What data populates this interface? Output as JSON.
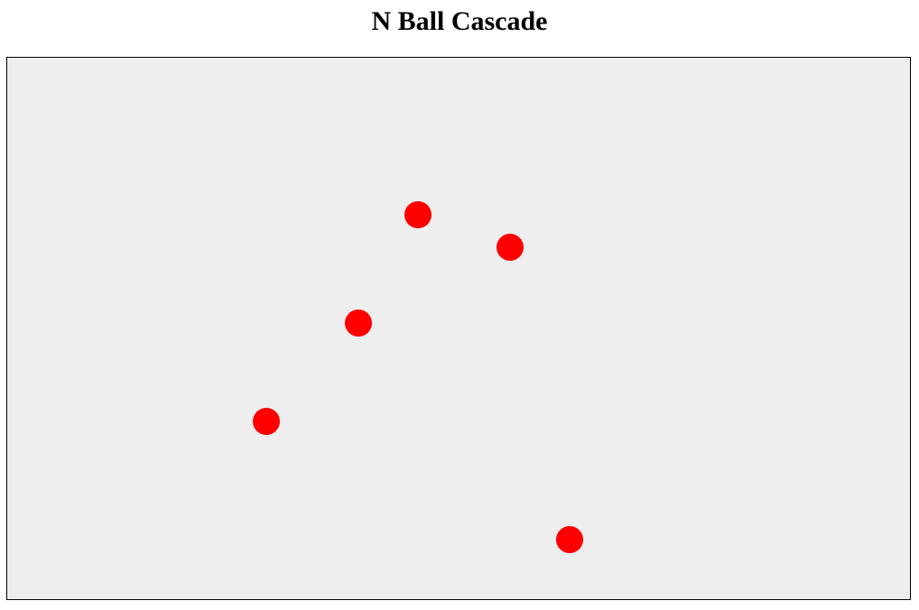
{
  "header": {
    "title": "N Ball Cascade"
  },
  "scene": {
    "background_color": "#eeeeee",
    "border_color": "#000000",
    "ball_color": "#ff0000",
    "balls": [
      {
        "id": "ball-1"
      },
      {
        "id": "ball-2"
      },
      {
        "id": "ball-3"
      },
      {
        "id": "ball-4"
      },
      {
        "id": "ball-5"
      }
    ]
  }
}
